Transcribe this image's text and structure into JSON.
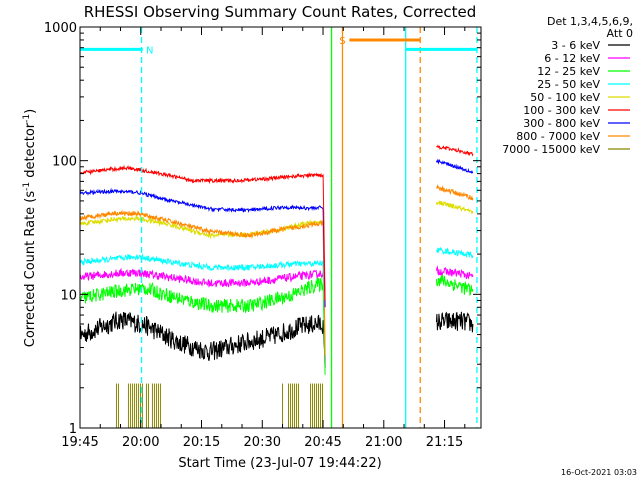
{
  "chart_data": {
    "type": "line",
    "title": "RHESSI Observing Summary Count Rates, Corrected",
    "xlabel": "Start Time (23-Jul-07 19:44:22)",
    "ylabel_main": "Corrected Count Rate (s",
    "ylabel_sup1": "-1",
    "ylabel_mid": " detector",
    "ylabel_sup2": "-1",
    "ylabel_end": ")",
    "x_range_minutes": [
      0,
      99
    ],
    "y_scale": "log",
    "ylim": [
      1,
      1000
    ],
    "x_ticks": [
      {
        "label": "19:45",
        "minute": 0
      },
      {
        "label": "20:00",
        "minute": 15
      },
      {
        "label": "20:15",
        "minute": 30
      },
      {
        "label": "20:30",
        "minute": 45
      },
      {
        "label": "20:45",
        "minute": 60
      },
      {
        "label": "21:00",
        "minute": 75
      },
      {
        "label": "21:15",
        "minute": 90
      }
    ],
    "y_ticks": [
      {
        "label": "1",
        "value": 1
      },
      {
        "label": "10",
        "value": 10
      },
      {
        "label": "100",
        "value": 100
      },
      {
        "label": "1000",
        "value": 1000
      }
    ],
    "legend_header": [
      "Det 1,3,4,5,6,9,",
      "Att 0"
    ],
    "series": [
      {
        "name": "3 - 6 keV",
        "color": "#000000",
        "noise": 0.17,
        "points": [
          [
            0,
            4.9
          ],
          [
            10,
            6.5
          ],
          [
            16,
            5.9
          ],
          [
            24,
            4.4
          ],
          [
            32,
            3.7
          ],
          [
            40,
            4.3
          ],
          [
            48,
            4.9
          ],
          [
            54,
            5.7
          ],
          [
            58,
            6.0
          ],
          [
            60,
            6.0
          ],
          [
            60.5,
            2.8
          ]
        ],
        "post": [
          [
            88,
            6.2
          ],
          [
            94,
            6.3
          ],
          [
            97,
            6.0
          ]
        ]
      },
      {
        "name": "6 - 12 keV",
        "color": "#ff00ff",
        "noise": 0.07,
        "points": [
          [
            0,
            13.4
          ],
          [
            8,
            14.3
          ],
          [
            14,
            14.6
          ],
          [
            22,
            13.4
          ],
          [
            32,
            12.1
          ],
          [
            42,
            12.2
          ],
          [
            52,
            13.4
          ],
          [
            58,
            14.1
          ],
          [
            60,
            14.4
          ],
          [
            60.5,
            3.2
          ]
        ],
        "post": [
          [
            88,
            15.0
          ],
          [
            94,
            14.3
          ],
          [
            97,
            13.5
          ]
        ]
      },
      {
        "name": "12 - 25 keV",
        "color": "#00ff00",
        "noise": 0.12,
        "points": [
          [
            0,
            9.3
          ],
          [
            10,
            10.7
          ],
          [
            16,
            11.1
          ],
          [
            24,
            9.4
          ],
          [
            32,
            8.2
          ],
          [
            42,
            8.2
          ],
          [
            52,
            9.8
          ],
          [
            58,
            11.7
          ],
          [
            60,
            12.0
          ],
          [
            60.5,
            2.5
          ]
        ],
        "post": [
          [
            88,
            13.0
          ],
          [
            94,
            11.5
          ],
          [
            97,
            10.5
          ]
        ]
      },
      {
        "name": "25 - 50 keV",
        "color": "#00ffff",
        "noise": 0.05,
        "points": [
          [
            0,
            17.4
          ],
          [
            8,
            18.3
          ],
          [
            14,
            19.2
          ],
          [
            22,
            17.5
          ],
          [
            32,
            15.9
          ],
          [
            42,
            15.9
          ],
          [
            52,
            16.8
          ],
          [
            58,
            17.0
          ],
          [
            60,
            17.2
          ],
          [
            60.5,
            3.8
          ]
        ],
        "post": [
          [
            88,
            21.5
          ],
          [
            94,
            20.3
          ],
          [
            97,
            19.6
          ]
        ]
      },
      {
        "name": "50 - 100 keV",
        "color": "#dddd00",
        "noise": 0.04,
        "points": [
          [
            0,
            33.5
          ],
          [
            8,
            36.4
          ],
          [
            14,
            37.0
          ],
          [
            22,
            33.4
          ],
          [
            32,
            27.6
          ],
          [
            42,
            28.1
          ],
          [
            50,
            30.8
          ],
          [
            56,
            33.9
          ],
          [
            60,
            34.7
          ],
          [
            60.5,
            4.2
          ]
        ],
        "post": [
          [
            88,
            49
          ],
          [
            94,
            44
          ],
          [
            97,
            40.5
          ]
        ]
      },
      {
        "name": "100 - 300 keV",
        "color": "#ff0000",
        "noise": 0.03,
        "points": [
          [
            0,
            80.8
          ],
          [
            6,
            85.1
          ],
          [
            12,
            88.6
          ],
          [
            20,
            79.7
          ],
          [
            28,
            71.0
          ],
          [
            38,
            70.7
          ],
          [
            46,
            73.1
          ],
          [
            52,
            76.1
          ],
          [
            58,
            78.1
          ],
          [
            60,
            78.3
          ],
          [
            60.5,
            9
          ]
        ],
        "post": [
          [
            88,
            128
          ],
          [
            94,
            118
          ],
          [
            97,
            112
          ]
        ]
      },
      {
        "name": "300 - 800 keV",
        "color": "#0000ff",
        "noise": 0.03,
        "points": [
          [
            0,
            57.1
          ],
          [
            8,
            59.1
          ],
          [
            14,
            58.1
          ],
          [
            22,
            50.5
          ],
          [
            32,
            43.5
          ],
          [
            42,
            42.6
          ],
          [
            50,
            44.9
          ],
          [
            56,
            44.2
          ],
          [
            60,
            44.6
          ],
          [
            60.5,
            8
          ]
        ],
        "post": [
          [
            88,
            100
          ],
          [
            94,
            88
          ],
          [
            97,
            82
          ]
        ]
      },
      {
        "name": "800 - 7000 keV",
        "color": "#ff8800",
        "noise": 0.04,
        "points": [
          [
            0,
            37.0
          ],
          [
            8,
            40.5
          ],
          [
            14,
            40.2
          ],
          [
            22,
            35.4
          ],
          [
            32,
            29.5
          ],
          [
            42,
            27.6
          ],
          [
            50,
            30.6
          ],
          [
            56,
            32.7
          ],
          [
            60,
            34.0
          ],
          [
            60.5,
            3.5
          ]
        ],
        "post": [
          [
            88,
            63
          ],
          [
            94,
            56
          ],
          [
            97,
            52.5
          ]
        ]
      },
      {
        "name": "7000 - 15000 keV",
        "color": "#888800",
        "noise": 0,
        "points": [],
        "post": []
      }
    ],
    "annotations": [
      {
        "label": "N",
        "color": "#00ffff",
        "bar_minutes": [
          0,
          15.5
        ],
        "bar_value": 680,
        "label_minute": 16.3
      },
      {
        "label": "S",
        "color": "#ff8800",
        "bar_minutes": [
          66.5,
          84
        ],
        "bar_value": 800,
        "label_minute": 64
      }
    ],
    "vertical_markers": [
      {
        "minute": 15.2,
        "color": "#00ffff",
        "style": "dashed"
      },
      {
        "minute": 62.1,
        "color": "#00ff00",
        "style": "solid"
      },
      {
        "minute": 64.8,
        "color": "#ff8800",
        "style": "solid"
      },
      {
        "minute": 80.4,
        "color": "#00ffff",
        "style": "solid"
      },
      {
        "minute": 84.0,
        "color": "#ff8800",
        "style": "dashed"
      },
      {
        "minute": 98.0,
        "color": "#00ffff",
        "style": "dashed"
      }
    ],
    "attenuator_bars": [
      {
        "start": 9,
        "end": 20
      },
      {
        "start": 50,
        "end": 60
      }
    ],
    "attenuator_value": 2.15,
    "attenuator_color": "#888800"
  },
  "timestamp": "16-Oct-2021 03:03"
}
